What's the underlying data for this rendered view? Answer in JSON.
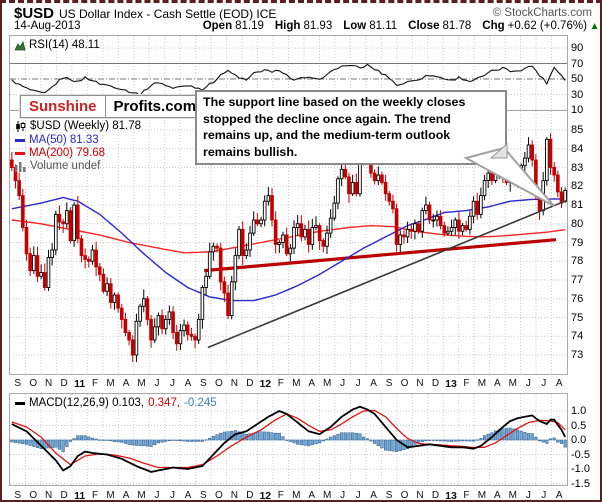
{
  "header": {
    "symbol": "$USD",
    "title": "US Dollar Index - Cash Settle (EOD) ICE",
    "copyright": "© StockCharts.com",
    "date": "14-Aug-2013",
    "quote": [
      {
        "label": "Open",
        "value": "81.19"
      },
      {
        "label": "High",
        "value": "81.93"
      },
      {
        "label": "Low",
        "value": "81.11"
      },
      {
        "label": "Close",
        "value": "81.78"
      },
      {
        "label": "Chg",
        "value": "+0.62 (+0.76%)"
      }
    ],
    "chg_direction": "up"
  },
  "rsi_label": "RSI(14) 48.11",
  "legend": {
    "series": "$USD (Weekly) 81.78",
    "ma50": "MA(50) 81.33",
    "ma200": "MA(200) 79.68",
    "volume": "Volume undef"
  },
  "logo": {
    "left": "Sunshine",
    "right": "Profits.com"
  },
  "annotation": "The support line based on the weekly closes stopped the decline once again. The trend remains up, and the medium-term outlook remains bullish.",
  "macd_legend": {
    "part1": "MACD(12,26,9) 0.103,",
    "part2": "0.347,",
    "part3": "-0.245"
  },
  "colors": {
    "candle_down": "#c40000",
    "candle_up_fill": "#ffffff",
    "candle_up_stroke": "#000000",
    "ma50": "#2929cc",
    "ma200": "#ff2222",
    "support_line": "#bb0000",
    "trendline": "#3a3a3a",
    "rsi_line": "#111111",
    "macd_line": "#000000",
    "macd_signal": "#e21212",
    "macd_hist_fill": "#72a7d3",
    "macd_hist_stroke": "#35689b",
    "chg_arrow": "#007700",
    "logo_red": "#cc2222",
    "neg_value_blue": "#3a7eb8"
  },
  "chart_data": {
    "type": "candlestick",
    "timeframe": "weekly",
    "symbol": "$USD",
    "weeks": 152,
    "x_months": [
      "S",
      "O",
      "N",
      "D",
      "11",
      "F",
      "M",
      "A",
      "M",
      "J",
      "J",
      "A",
      "S",
      "O",
      "N",
      "D",
      "12",
      "F",
      "M",
      "A",
      "M",
      "J",
      "J",
      "A",
      "S",
      "O",
      "N",
      "D",
      "13",
      "F",
      "M",
      "A",
      "M",
      "J",
      "J",
      "A"
    ],
    "price_axis": [
      85,
      84,
      83,
      82,
      81,
      80,
      79,
      78,
      77,
      76,
      75,
      74,
      73
    ],
    "first_open": 83.4,
    "weekly_closes": [
      83.0,
      82.3,
      81.5,
      79.8,
      78.4,
      77.5,
      78.3,
      77.2,
      77.4,
      76.6,
      78.2,
      78.6,
      80.5,
      80.1,
      80.0,
      80.7,
      79.1,
      81.0,
      79.2,
      78.3,
      78.1,
      78.0,
      78.6,
      77.7,
      77.3,
      76.4,
      76.8,
      75.8,
      76.2,
      75.5,
      74.9,
      74.2,
      73.8,
      73.0,
      74.8,
      75.6,
      76.0,
      74.9,
      73.8,
      74.5,
      75.1,
      74.4,
      74.9,
      75.3,
      74.2,
      73.6,
      74.3,
      74.6,
      74.1,
      74.0,
      73.8,
      74.9,
      76.6,
      77.2,
      78.5,
      78.8,
      78.7,
      76.9,
      76.3,
      75.1,
      76.9,
      78.3,
      79.7,
      78.3,
      78.6,
      79.5,
      80.2,
      80.0,
      80.2,
      81.2,
      81.5,
      80.2,
      78.9,
      79.0,
      79.4,
      78.4,
      78.7,
      79.8,
      80.0,
      79.3,
      79.7,
      78.9,
      79.8,
      79.9,
      79.1,
      78.8,
      79.5,
      80.3,
      81.1,
      82.4,
      82.9,
      82.5,
      81.6,
      82.2,
      81.6,
      83.3,
      83.4,
      83.5,
      82.7,
      82.3,
      82.6,
      82.2,
      81.6,
      81.2,
      80.8,
      78.9,
      79.4,
      79.3,
      79.7,
      79.6,
      80.0,
      79.6,
      80.7,
      81.0,
      80.2,
      80.2,
      80.4,
      79.9,
      79.5,
      79.6,
      79.8,
      80.2,
      79.6,
      79.9,
      79.7,
      80.4,
      81.2,
      80.5,
      81.5,
      82.3,
      82.7,
      82.3,
      82.8,
      83.0,
      82.5,
      82.2,
      82.7,
      82.5,
      82.1,
      83.1,
      83.5,
      84.2,
      83.4,
      81.7,
      80.7,
      82.3,
      84.5,
      83.0,
      82.6,
      81.7,
      81.1,
      81.78
    ],
    "last_candle": {
      "open": 81.19,
      "high": 81.93,
      "low": 81.11,
      "close": 81.78
    },
    "ma50_points": [
      [
        0,
        80.8
      ],
      [
        8,
        81.1
      ],
      [
        14,
        81.4
      ],
      [
        18,
        81.2
      ],
      [
        24,
        80.5
      ],
      [
        30,
        79.5
      ],
      [
        36,
        78.4
      ],
      [
        42,
        77.4
      ],
      [
        48,
        76.6
      ],
      [
        54,
        76.1
      ],
      [
        60,
        75.9
      ],
      [
        66,
        75.9
      ],
      [
        72,
        76.2
      ],
      [
        78,
        76.7
      ],
      [
        84,
        77.3
      ],
      [
        90,
        78.0
      ],
      [
        96,
        78.7
      ],
      [
        102,
        79.3
      ],
      [
        108,
        79.9
      ],
      [
        114,
        80.3
      ],
      [
        118,
        80.6
      ],
      [
        124,
        80.7
      ],
      [
        130,
        80.9
      ],
      [
        136,
        81.2
      ],
      [
        142,
        81.3
      ],
      [
        151,
        81.33
      ]
    ],
    "ma200_points": [
      [
        0,
        80.2
      ],
      [
        8,
        80.0
      ],
      [
        16,
        79.7
      ],
      [
        24,
        79.4
      ],
      [
        32,
        79.0
      ],
      [
        40,
        78.7
      ],
      [
        47,
        78.45
      ],
      [
        54,
        78.5
      ],
      [
        60,
        78.7
      ],
      [
        68,
        79.0
      ],
      [
        76,
        79.3
      ],
      [
        84,
        79.6
      ],
      [
        92,
        79.8
      ],
      [
        98,
        79.9
      ],
      [
        104,
        79.85
      ],
      [
        110,
        79.6
      ],
      [
        116,
        79.45
      ],
      [
        122,
        79.35
      ],
      [
        128,
        79.3
      ],
      [
        134,
        79.35
      ],
      [
        140,
        79.45
      ],
      [
        146,
        79.55
      ],
      [
        151,
        79.68
      ]
    ],
    "trendline": {
      "from": [
        54,
        73.4
      ],
      "to": [
        152,
        81.25
      ]
    },
    "support_line": {
      "from": [
        53,
        77.5
      ],
      "to": [
        149,
        79.15
      ]
    },
    "rsi": {
      "label": "RSI(14)",
      "value": 48.11,
      "scale": [
        90,
        70,
        50,
        30,
        10
      ],
      "points": [
        [
          0,
          48
        ],
        [
          3,
          40
        ],
        [
          6,
          34
        ],
        [
          9,
          31
        ],
        [
          12,
          44
        ],
        [
          14,
          52
        ],
        [
          16,
          50
        ],
        [
          18,
          46
        ],
        [
          20,
          52
        ],
        [
          24,
          44
        ],
        [
          28,
          40
        ],
        [
          32,
          34
        ],
        [
          35,
          30
        ],
        [
          38,
          42
        ],
        [
          40,
          46
        ],
        [
          44,
          38
        ],
        [
          48,
          42
        ],
        [
          52,
          37
        ],
        [
          55,
          46
        ],
        [
          57,
          56
        ],
        [
          59,
          60
        ],
        [
          62,
          52
        ],
        [
          64,
          48
        ],
        [
          66,
          57
        ],
        [
          69,
          62
        ],
        [
          71,
          58
        ],
        [
          73,
          62
        ],
        [
          75,
          55
        ],
        [
          77,
          48
        ],
        [
          80,
          52
        ],
        [
          83,
          49
        ],
        [
          86,
          55
        ],
        [
          89,
          65
        ],
        [
          92,
          68
        ],
        [
          95,
          64
        ],
        [
          97,
          68
        ],
        [
          100,
          60
        ],
        [
          103,
          52
        ],
        [
          105,
          42
        ],
        [
          108,
          46
        ],
        [
          111,
          50
        ],
        [
          114,
          55
        ],
        [
          117,
          52
        ],
        [
          120,
          48
        ],
        [
          122,
          52
        ],
        [
          125,
          47
        ],
        [
          128,
          52
        ],
        [
          131,
          60
        ],
        [
          134,
          64
        ],
        [
          136,
          60
        ],
        [
          139,
          62
        ],
        [
          142,
          67
        ],
        [
          144,
          55
        ],
        [
          146,
          45
        ],
        [
          148,
          65
        ],
        [
          150,
          55
        ],
        [
          151,
          48.11
        ]
      ]
    },
    "macd": {
      "label": "MACD(12,26,9)",
      "values": [
        0.103,
        0.347,
        -0.245
      ],
      "scale": [
        "1.0",
        "0.5",
        "0.0",
        "-0.5",
        "-1.0",
        "-1.5"
      ],
      "macd_points": [
        [
          0,
          0.55
        ],
        [
          4,
          0.3
        ],
        [
          8,
          -0.2
        ],
        [
          12,
          -0.7
        ],
        [
          14,
          -1.05
        ],
        [
          16,
          -0.9
        ],
        [
          18,
          -0.55
        ],
        [
          20,
          -0.4
        ],
        [
          22,
          -0.45
        ],
        [
          26,
          -0.5
        ],
        [
          30,
          -0.65
        ],
        [
          34,
          -0.9
        ],
        [
          38,
          -1.1
        ],
        [
          40,
          -1.05
        ],
        [
          44,
          -0.95
        ],
        [
          48,
          -1.0
        ],
        [
          52,
          -0.9
        ],
        [
          55,
          -0.5
        ],
        [
          58,
          -0.1
        ],
        [
          61,
          0.2
        ],
        [
          64,
          0.3
        ],
        [
          67,
          0.55
        ],
        [
          70,
          0.8
        ],
        [
          73,
          1.0
        ],
        [
          75,
          0.9
        ],
        [
          78,
          0.6
        ],
        [
          81,
          0.3
        ],
        [
          84,
          0.2
        ],
        [
          87,
          0.45
        ],
        [
          90,
          0.8
        ],
        [
          93,
          1.05
        ],
        [
          95,
          1.15
        ],
        [
          97,
          1.05
        ],
        [
          99,
          0.9
        ],
        [
          102,
          0.45
        ],
        [
          105,
          0.0
        ],
        [
          108,
          -0.25
        ],
        [
          111,
          -0.2
        ],
        [
          114,
          -0.15
        ],
        [
          117,
          -0.2
        ],
        [
          120,
          -0.25
        ],
        [
          123,
          -0.25
        ],
        [
          126,
          -0.3
        ],
        [
          128,
          -0.2
        ],
        [
          131,
          0.1
        ],
        [
          134,
          0.45
        ],
        [
          136,
          0.65
        ],
        [
          138,
          0.75
        ],
        [
          140,
          0.8
        ],
        [
          142,
          0.85
        ],
        [
          144,
          0.65
        ],
        [
          146,
          0.55
        ],
        [
          147,
          0.7
        ],
        [
          148,
          0.7
        ],
        [
          150,
          0.35
        ],
        [
          151,
          0.103
        ]
      ],
      "signal_points": [
        [
          0,
          0.62
        ],
        [
          4,
          0.45
        ],
        [
          8,
          0.1
        ],
        [
          12,
          -0.45
        ],
        [
          16,
          -0.85
        ],
        [
          20,
          -0.55
        ],
        [
          24,
          -0.48
        ],
        [
          28,
          -0.52
        ],
        [
          32,
          -0.62
        ],
        [
          36,
          -0.8
        ],
        [
          40,
          -0.95
        ],
        [
          44,
          -0.95
        ],
        [
          48,
          -0.95
        ],
        [
          52,
          -0.85
        ],
        [
          56,
          -0.55
        ],
        [
          60,
          -0.2
        ],
        [
          64,
          0.1
        ],
        [
          68,
          0.35
        ],
        [
          72,
          0.7
        ],
        [
          75,
          0.9
        ],
        [
          78,
          0.75
        ],
        [
          81,
          0.5
        ],
        [
          84,
          0.3
        ],
        [
          87,
          0.35
        ],
        [
          90,
          0.55
        ],
        [
          93,
          0.8
        ],
        [
          96,
          1.0
        ],
        [
          99,
          1.02
        ],
        [
          102,
          0.8
        ],
        [
          105,
          0.4
        ],
        [
          108,
          0.05
        ],
        [
          111,
          -0.12
        ],
        [
          114,
          -0.15
        ],
        [
          117,
          -0.17
        ],
        [
          120,
          -0.2
        ],
        [
          123,
          -0.22
        ],
        [
          126,
          -0.26
        ],
        [
          129,
          -0.25
        ],
        [
          132,
          -0.1
        ],
        [
          135,
          0.15
        ],
        [
          138,
          0.4
        ],
        [
          141,
          0.6
        ],
        [
          144,
          0.68
        ],
        [
          147,
          0.66
        ],
        [
          149,
          0.6
        ],
        [
          151,
          0.347
        ]
      ]
    }
  }
}
